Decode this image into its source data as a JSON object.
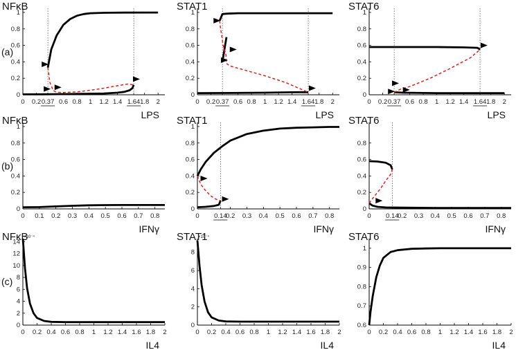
{
  "figure": {
    "row_labels": [
      "(a)",
      "(b)",
      "(c)"
    ]
  },
  "chart_data": [
    {
      "id": "a1",
      "type": "line",
      "title": "NFκB",
      "xlabel": "LPS",
      "xlim": [
        0,
        2.1
      ],
      "ylim": [
        0,
        1.05
      ],
      "xticks": [
        "0",
        "0.2",
        "0.37",
        "0.6",
        "0.8",
        "1",
        "1.2",
        "1.4",
        "1.64",
        "1.8",
        "2"
      ],
      "yticks": [
        "0",
        "0.2",
        "0.4",
        "0.6",
        "0.8",
        "1"
      ],
      "underlined_ticks": [
        "0.37",
        "1.64"
      ],
      "vlines": [
        0.37,
        1.64
      ],
      "series": [
        {
          "name": "stable-low",
          "style": "solid",
          "x": [
            0,
            0.3,
            0.6,
            0.9,
            1.2,
            1.4,
            1.5,
            1.58,
            1.62,
            1.64
          ],
          "y": [
            0.005,
            0.006,
            0.008,
            0.011,
            0.016,
            0.025,
            0.035,
            0.055,
            0.08,
            0.12
          ]
        },
        {
          "name": "stable-high",
          "style": "solid",
          "x": [
            0.37,
            0.42,
            0.5,
            0.6,
            0.7,
            0.8,
            0.9,
            1.0,
            1.2,
            1.5,
            2.0
          ],
          "y": [
            0.33,
            0.55,
            0.72,
            0.85,
            0.92,
            0.96,
            0.98,
            0.99,
            0.995,
            0.998,
            0.999
          ]
        },
        {
          "name": "unstable",
          "style": "dashed",
          "x": [
            0.37,
            0.4,
            0.45,
            0.5,
            0.6,
            0.8,
            1.0,
            1.2,
            1.4,
            1.55,
            1.64
          ],
          "y": [
            0.33,
            0.15,
            0.05,
            0.03,
            0.028,
            0.035,
            0.055,
            0.08,
            0.11,
            0.13,
            0.12
          ]
        }
      ],
      "arrows": [
        [
          0.33,
          0.37
        ],
        [
          0.36,
          0.07
        ],
        [
          0.52,
          0.09
        ],
        [
          1.68,
          0.19
        ]
      ]
    },
    {
      "id": "a2",
      "type": "line",
      "title": "STAT1",
      "xlabel": "LPS",
      "xlim": [
        0,
        2.1
      ],
      "ylim": [
        0,
        1.05
      ],
      "xticks": [
        "0",
        "0.2",
        "0.37",
        "0.6",
        "0.8",
        "1",
        "1.2",
        "1.4",
        "1.64",
        "1.8",
        "2"
      ],
      "yticks": [
        "0",
        "0.2",
        "0.4",
        "0.6",
        "0.8",
        "1"
      ],
      "underlined_ticks": [
        "0.37",
        "1.64"
      ],
      "vlines": [
        0.37,
        1.64
      ],
      "series": [
        {
          "name": "stable-low",
          "style": "solid",
          "x": [
            0,
            0.5,
            1.0,
            1.4,
            1.6,
            1.64
          ],
          "y": [
            0.02,
            0.022,
            0.025,
            0.03,
            0.032,
            0.03
          ]
        },
        {
          "name": "stable-high",
          "style": "solid",
          "x": [
            0.33,
            0.37,
            0.45,
            0.6,
            1.0,
            1.5,
            2.0
          ],
          "y": [
            0.9,
            0.98,
            0.985,
            0.99,
            0.99,
            0.99,
            0.99
          ]
        },
        {
          "name": "stable-mid",
          "style": "solid",
          "x": [
            0.37,
            0.39,
            0.41,
            0.43
          ],
          "y": [
            0.4,
            0.5,
            0.6,
            0.7
          ]
        },
        {
          "name": "unstable",
          "style": "dashed",
          "x": [
            0.33,
            0.34,
            0.36,
            0.38,
            0.42,
            0.43,
            0.48,
            0.7,
            1.0,
            1.3,
            1.5,
            1.64
          ],
          "y": [
            0.9,
            0.82,
            0.72,
            0.6,
            0.5,
            0.38,
            0.35,
            0.3,
            0.23,
            0.15,
            0.08,
            0.03
          ]
        }
      ],
      "arrows": [
        [
          0.29,
          0.9
        ],
        [
          0.53,
          0.55
        ],
        [
          0.4,
          0.42
        ],
        [
          1.7,
          0.08
        ]
      ]
    },
    {
      "id": "a3",
      "type": "line",
      "title": "STAT6",
      "xlabel": "LPS",
      "xlim": [
        0,
        2.1
      ],
      "ylim": [
        0,
        1.05
      ],
      "xticks": [
        "0",
        "0.2",
        "0.37",
        "0.6",
        "0.8",
        "1",
        "1.2",
        "1.4",
        "1.64",
        "1.8",
        "2"
      ],
      "yticks": [
        "0",
        "0.2",
        "0.4",
        "0.6",
        "0.8",
        "1"
      ],
      "underlined_ticks": [
        "0.37",
        "1.64"
      ],
      "vlines": [
        0.37,
        1.64
      ],
      "series": [
        {
          "name": "stable-high",
          "style": "solid",
          "x": [
            0,
            0.5,
            1.0,
            1.4,
            1.6,
            1.64
          ],
          "y": [
            0.58,
            0.58,
            0.58,
            0.575,
            0.57,
            0.55
          ]
        },
        {
          "name": "stable-low",
          "style": "solid",
          "x": [
            0.37,
            0.5,
            1.0,
            1.5,
            2.0
          ],
          "y": [
            0.03,
            0.025,
            0.02,
            0.02,
            0.02
          ]
        },
        {
          "name": "unstable",
          "style": "dashed",
          "x": [
            0.37,
            0.42,
            0.47,
            0.6,
            0.9,
            1.2,
            1.5,
            1.64
          ],
          "y": [
            0.03,
            0.05,
            0.07,
            0.1,
            0.2,
            0.32,
            0.45,
            0.55
          ]
        }
      ],
      "arrows": [
        [
          0.33,
          0.04
        ],
        [
          0.39,
          0.14
        ],
        [
          0.55,
          0.06
        ],
        [
          1.7,
          0.6
        ]
      ]
    },
    {
      "id": "b1",
      "type": "line",
      "title": "NFκB",
      "xlabel": "IFNγ",
      "xlim": [
        0,
        0.86
      ],
      "ylim": [
        0,
        1.05
      ],
      "xticks": [
        "0",
        "0.1",
        "0.2",
        "0.3",
        "0.4",
        "0.5",
        "0.6",
        "0.7",
        "0.8"
      ],
      "yticks": [
        "0",
        "0.2",
        "0.4",
        "0.6",
        "0.8",
        "1"
      ],
      "underlined_ticks": [],
      "vlines": [],
      "series": [
        {
          "name": "stable",
          "style": "solid",
          "x": [
            0,
            0.1,
            0.2,
            0.3,
            0.4,
            0.5,
            0.6,
            0.7,
            0.8,
            0.86
          ],
          "y": [
            0.02,
            0.022,
            0.03,
            0.038,
            0.044,
            0.046,
            0.047,
            0.047,
            0.047,
            0.047
          ]
        }
      ],
      "arrows": []
    },
    {
      "id": "b2",
      "type": "line",
      "title": "STAT1",
      "xlabel": "IFNγ",
      "xlim": [
        0,
        0.86
      ],
      "ylim": [
        0,
        1.05
      ],
      "xticks": [
        "0",
        "0.14",
        "0.2",
        "0.3",
        "0.4",
        "0.5",
        "0.6",
        "0.7",
        "0.8"
      ],
      "yticks": [
        "0",
        "0.2",
        "0.4",
        "0.6",
        "0.8",
        "1"
      ],
      "underlined_ticks": [
        "0.14"
      ],
      "vlines": [
        0.14
      ],
      "series": [
        {
          "name": "stable-low",
          "style": "solid",
          "x": [
            0,
            0.05,
            0.1,
            0.13,
            0.14
          ],
          "y": [
            0.02,
            0.025,
            0.035,
            0.05,
            0.1
          ]
        },
        {
          "name": "stable-high",
          "style": "solid",
          "x": [
            0,
            0.02,
            0.05,
            0.1,
            0.15,
            0.2,
            0.3,
            0.4,
            0.5,
            0.6,
            0.7,
            0.8,
            0.86
          ],
          "y": [
            0.4,
            0.48,
            0.57,
            0.68,
            0.76,
            0.83,
            0.91,
            0.95,
            0.975,
            0.985,
            0.99,
            0.995,
            0.995
          ]
        },
        {
          "name": "unstable",
          "style": "dashed",
          "x": [
            0,
            0.02,
            0.05,
            0.08,
            0.11,
            0.14
          ],
          "y": [
            0.4,
            0.3,
            0.22,
            0.16,
            0.12,
            0.1
          ]
        }
      ],
      "arrows": [
        [
          0.04,
          0.37
        ],
        [
          0.17,
          0.12
        ]
      ]
    },
    {
      "id": "b3",
      "type": "line",
      "title": "STAT6",
      "xlabel": "IFNγ",
      "xlim": [
        0,
        0.86
      ],
      "ylim": [
        0,
        1.05
      ],
      "xticks": [
        "0",
        "0.14",
        "0.2",
        "0.3",
        "0.4",
        "0.5",
        "0.6",
        "0.7",
        "0.8"
      ],
      "yticks": [
        "0",
        "0.2",
        "0.4",
        "0.6",
        "0.8"
      ],
      "underlined_ticks": [
        "0.14"
      ],
      "vlines": [
        0.14
      ],
      "series": [
        {
          "name": "stable-high",
          "style": "solid",
          "x": [
            0,
            0.05,
            0.1,
            0.13,
            0.14
          ],
          "y": [
            0.58,
            0.575,
            0.56,
            0.53,
            0.48
          ]
        },
        {
          "name": "stable-low",
          "style": "solid",
          "x": [
            0,
            0.02,
            0.05,
            0.1,
            0.2,
            0.4,
            0.6,
            0.86
          ],
          "y": [
            0.07,
            0.04,
            0.025,
            0.018,
            0.015,
            0.012,
            0.012,
            0.012
          ]
        },
        {
          "name": "unstable",
          "style": "dashed",
          "x": [
            0,
            0.03,
            0.07,
            0.1,
            0.13,
            0.14
          ],
          "y": [
            0.07,
            0.15,
            0.25,
            0.34,
            0.42,
            0.48
          ]
        }
      ],
      "arrows": [
        [
          0.06,
          0.1
        ]
      ]
    },
    {
      "id": "c1",
      "type": "line",
      "title": "NFκB",
      "xlabel": "IL4",
      "xlim": [
        0,
        2.0
      ],
      "ylim": [
        0,
        14.5
      ],
      "xticks": [
        "0",
        "0.2",
        "0.4",
        "0.6",
        "0.8",
        "1",
        "1.2",
        "1.4",
        "1.6",
        "1.8",
        "2"
      ],
      "yticks": [
        "0",
        "2",
        "4",
        "6",
        "8",
        "10",
        "12",
        "14"
      ],
      "y_multiplier": "×10⁻⁴",
      "underlined_ticks": [],
      "vlines": [],
      "series": [
        {
          "name": "stable",
          "style": "solid",
          "x": [
            0,
            0.03,
            0.06,
            0.1,
            0.15,
            0.2,
            0.3,
            0.4,
            0.6,
            1.0,
            1.5,
            2.0
          ],
          "y": [
            14.5,
            9.5,
            6.2,
            3.6,
            2.0,
            1.2,
            0.7,
            0.55,
            0.5,
            0.5,
            0.5,
            0.5
          ]
        }
      ],
      "arrows": []
    },
    {
      "id": "c2",
      "type": "line",
      "title": "STAT1",
      "xlabel": "IL4",
      "xlim": [
        0,
        2.0
      ],
      "ylim": [
        0,
        9.5
      ],
      "xticks": [
        "0",
        "0.2",
        "0.4",
        "0.6",
        "0.8",
        "1",
        "1.2",
        "1.4",
        "1.6",
        "1.8",
        "2"
      ],
      "yticks": [
        "0",
        "2",
        "4",
        "6",
        "8"
      ],
      "y_multiplier": "×10⁻⁴",
      "underlined_ticks": [],
      "vlines": [],
      "series": [
        {
          "name": "stable",
          "style": "solid",
          "x": [
            0,
            0.03,
            0.06,
            0.1,
            0.15,
            0.2,
            0.3,
            0.4,
            0.6,
            1.0,
            1.5,
            2.0
          ],
          "y": [
            9.3,
            6.5,
            4.4,
            2.6,
            1.4,
            0.85,
            0.5,
            0.4,
            0.38,
            0.38,
            0.38,
            0.38
          ]
        }
      ],
      "arrows": []
    },
    {
      "id": "c3",
      "type": "line",
      "title": "STAT6",
      "xlabel": "IL4",
      "xlim": [
        0,
        2.0
      ],
      "ylim": [
        0.6,
        1.05
      ],
      "xticks": [
        "0",
        "0.2",
        "0.4",
        "0.6",
        "0.8",
        "1",
        "1.2",
        "1.4",
        "1.6",
        "1.8",
        "2"
      ],
      "yticks": [
        "0.6",
        "0.7",
        "0.8",
        "0.9",
        "1"
      ],
      "underlined_ticks": [],
      "vlines": [],
      "series": [
        {
          "name": "stable",
          "style": "solid",
          "x": [
            0,
            0.02,
            0.05,
            0.1,
            0.15,
            0.2,
            0.3,
            0.4,
            0.6,
            0.8,
            1.0,
            1.5,
            2.0
          ],
          "y": [
            0.6,
            0.67,
            0.75,
            0.85,
            0.91,
            0.95,
            0.98,
            0.99,
            0.997,
            0.999,
            1.0,
            1.0,
            1.0
          ]
        }
      ],
      "arrows": []
    }
  ]
}
